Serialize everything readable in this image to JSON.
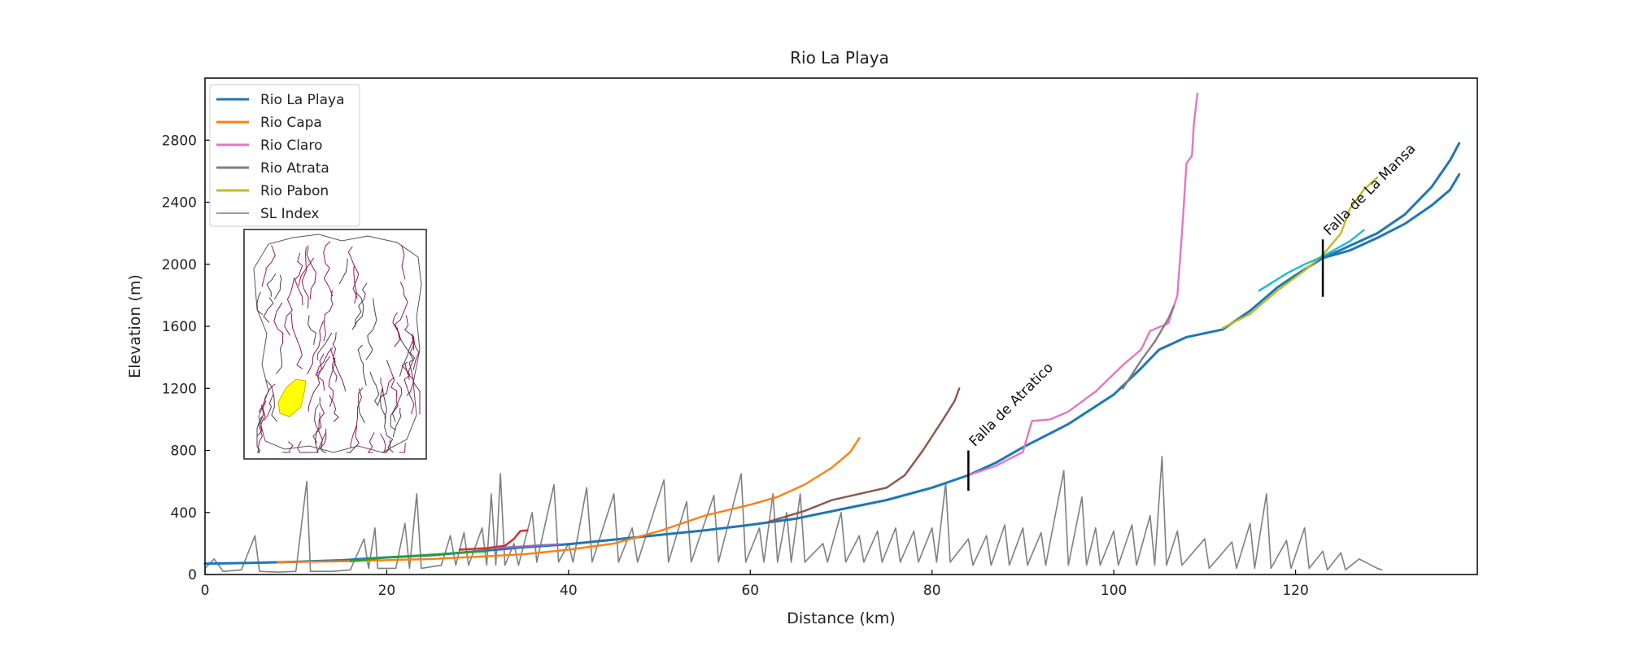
{
  "chart_data": {
    "type": "line",
    "title": "Rio La Playa",
    "xlabel": "Distance (km)",
    "ylabel": "Elevation (m)",
    "xlim": [
      0,
      140
    ],
    "ylim": [
      0,
      3200
    ],
    "xticks": [
      0,
      20,
      40,
      60,
      80,
      100,
      120
    ],
    "yticks": [
      0,
      400,
      800,
      1200,
      1600,
      2000,
      2400,
      2800
    ],
    "grid": false,
    "legend_position": "top-left",
    "series": [
      {
        "name": "Rio La Playa",
        "color": "#1f77b4",
        "in_legend": true,
        "points": [
          [
            0,
            70
          ],
          [
            5,
            75
          ],
          [
            10,
            82
          ],
          [
            15,
            92
          ],
          [
            20,
            110
          ],
          [
            25,
            125
          ],
          [
            30,
            150
          ],
          [
            35,
            175
          ],
          [
            40,
            195
          ],
          [
            45,
            225
          ],
          [
            50,
            255
          ],
          [
            55,
            285
          ],
          [
            60,
            320
          ],
          [
            65,
            360
          ],
          [
            70,
            420
          ],
          [
            75,
            480
          ],
          [
            80,
            560
          ],
          [
            84,
            640
          ],
          [
            87,
            720
          ],
          [
            90,
            820
          ],
          [
            95,
            970
          ],
          [
            100,
            1160
          ],
          [
            103,
            1330
          ],
          [
            105,
            1450
          ],
          [
            108,
            1530
          ],
          [
            112,
            1580
          ],
          [
            115,
            1700
          ],
          [
            118,
            1850
          ],
          [
            120,
            1930
          ],
          [
            123,
            2040
          ],
          [
            126,
            2120
          ],
          [
            129,
            2200
          ],
          [
            132,
            2320
          ],
          [
            135,
            2500
          ],
          [
            137,
            2670
          ],
          [
            138,
            2780
          ]
        ]
      },
      {
        "name": "Rio Capa",
        "color": "#ff7f0e",
        "in_legend": true,
        "points": [
          [
            8,
            80
          ],
          [
            15,
            85
          ],
          [
            25,
            100
          ],
          [
            35,
            130
          ],
          [
            40,
            160
          ],
          [
            45,
            200
          ],
          [
            50,
            280
          ],
          [
            55,
            380
          ],
          [
            60,
            450
          ],
          [
            63,
            500
          ],
          [
            66,
            580
          ],
          [
            69,
            690
          ],
          [
            71,
            790
          ],
          [
            72,
            880
          ]
        ]
      },
      {
        "name": "Rio Claro",
        "color": "#e377c2",
        "in_legend": true,
        "points": [
          [
            84,
            640
          ],
          [
            87,
            700
          ],
          [
            90,
            790
          ],
          [
            91,
            990
          ],
          [
            93,
            1000
          ],
          [
            95,
            1050
          ],
          [
            98,
            1180
          ],
          [
            101,
            1350
          ],
          [
            103,
            1450
          ],
          [
            104,
            1570
          ],
          [
            106,
            1620
          ],
          [
            107,
            1800
          ],
          [
            107.5,
            2200
          ],
          [
            108,
            2650
          ],
          [
            108.6,
            2700
          ],
          [
            108.8,
            2900
          ],
          [
            109.2,
            3100
          ]
        ]
      },
      {
        "name": "Rio Atrata",
        "color": "#7f7f7f",
        "in_legend": true,
        "points": [
          [
            101,
            1200
          ],
          [
            103,
            1380
          ],
          [
            104.5,
            1500
          ],
          [
            106,
            1650
          ],
          [
            106.6,
            1730
          ]
        ]
      },
      {
        "name": "Rio Pabon",
        "color": "#bcbd22",
        "in_legend": true,
        "points": [
          [
            112,
            1590
          ],
          [
            115,
            1680
          ],
          [
            118,
            1830
          ],
          [
            121,
            1960
          ],
          [
            123,
            2060
          ],
          [
            125,
            2200
          ],
          [
            126,
            2360
          ],
          [
            127.5,
            2480
          ],
          [
            129,
            2560
          ]
        ]
      },
      {
        "name": "SL Index",
        "color": "#7f7f7f",
        "in_legend": true,
        "points": [
          [
            0,
            40
          ],
          [
            1,
            100
          ],
          [
            2,
            20
          ],
          [
            4,
            30
          ],
          [
            5.5,
            250
          ],
          [
            6,
            20
          ],
          [
            8,
            15
          ],
          [
            10,
            20
          ],
          [
            11.2,
            600
          ],
          [
            11.6,
            20
          ],
          [
            14,
            20
          ],
          [
            16,
            30
          ],
          [
            17.5,
            230
          ],
          [
            18,
            40
          ],
          [
            18.7,
            300
          ],
          [
            19,
            40
          ],
          [
            21,
            40
          ],
          [
            22,
            330
          ],
          [
            22.5,
            40
          ],
          [
            23.3,
            520
          ],
          [
            23.8,
            40
          ],
          [
            26,
            60
          ],
          [
            27,
            250
          ],
          [
            27.6,
            60
          ],
          [
            28.5,
            270
          ],
          [
            29,
            60
          ],
          [
            30.5,
            300
          ],
          [
            31,
            60
          ],
          [
            31.5,
            520
          ],
          [
            32,
            60
          ],
          [
            32.5,
            650
          ],
          [
            33,
            60
          ],
          [
            34,
            200
          ],
          [
            34.5,
            60
          ],
          [
            36,
            400
          ],
          [
            36.5,
            80
          ],
          [
            38.4,
            580
          ],
          [
            38.9,
            80
          ],
          [
            40,
            200
          ],
          [
            40.5,
            80
          ],
          [
            42,
            560
          ],
          [
            42.6,
            80
          ],
          [
            45,
            520
          ],
          [
            45.5,
            80
          ],
          [
            47,
            300
          ],
          [
            47.6,
            80
          ],
          [
            50.5,
            610
          ],
          [
            51,
            80
          ],
          [
            53,
            470
          ],
          [
            53.5,
            80
          ],
          [
            56,
            510
          ],
          [
            56.5,
            80
          ],
          [
            59,
            650
          ],
          [
            59.5,
            80
          ],
          [
            61,
            300
          ],
          [
            61.5,
            80
          ],
          [
            62.5,
            520
          ],
          [
            63,
            80
          ],
          [
            64,
            400
          ],
          [
            64.5,
            80
          ],
          [
            65.5,
            520
          ],
          [
            66,
            80
          ],
          [
            68,
            200
          ],
          [
            68.5,
            80
          ],
          [
            70,
            400
          ],
          [
            70.5,
            80
          ],
          [
            72,
            250
          ],
          [
            72.5,
            80
          ],
          [
            74,
            280
          ],
          [
            74.5,
            80
          ],
          [
            76,
            300
          ],
          [
            76.5,
            80
          ],
          [
            78,
            280
          ],
          [
            78.5,
            80
          ],
          [
            80,
            300
          ],
          [
            80.5,
            80
          ],
          [
            81.5,
            590
          ],
          [
            82,
            80
          ],
          [
            84,
            230
          ],
          [
            84.5,
            60
          ],
          [
            86,
            250
          ],
          [
            86.5,
            60
          ],
          [
            88,
            320
          ],
          [
            88.5,
            60
          ],
          [
            90,
            300
          ],
          [
            90.5,
            60
          ],
          [
            92,
            270
          ],
          [
            92.5,
            60
          ],
          [
            94.5,
            670
          ],
          [
            95,
            60
          ],
          [
            96.5,
            500
          ],
          [
            97,
            60
          ],
          [
            98,
            300
          ],
          [
            98.5,
            60
          ],
          [
            100,
            280
          ],
          [
            100.5,
            60
          ],
          [
            102,
            320
          ],
          [
            102.5,
            60
          ],
          [
            104,
            380
          ],
          [
            104.5,
            60
          ],
          [
            105.3,
            760
          ],
          [
            105.8,
            60
          ],
          [
            107,
            280
          ],
          [
            107.5,
            60
          ],
          [
            110,
            230
          ],
          [
            110.5,
            40
          ],
          [
            113,
            210
          ],
          [
            113.5,
            40
          ],
          [
            115,
            330
          ],
          [
            115.5,
            40
          ],
          [
            116.8,
            520
          ],
          [
            117.3,
            40
          ],
          [
            119,
            220
          ],
          [
            119.5,
            40
          ],
          [
            121,
            300
          ],
          [
            121.5,
            40
          ],
          [
            123,
            150
          ],
          [
            123.5,
            30
          ],
          [
            125,
            140
          ],
          [
            125.5,
            30
          ],
          [
            127,
            100
          ],
          [
            129,
            40
          ],
          [
            129.5,
            30
          ]
        ]
      },
      {
        "name": "",
        "color": "#2ca02c",
        "in_legend": false,
        "points": [
          [
            16,
            85
          ],
          [
            20,
            110
          ],
          [
            24,
            125
          ],
          [
            28,
            140
          ],
          [
            31,
            150
          ]
        ]
      },
      {
        "name": "",
        "color": "#d62728",
        "in_legend": false,
        "points": [
          [
            28,
            160
          ],
          [
            31,
            170
          ],
          [
            33,
            185
          ],
          [
            34,
            230
          ],
          [
            34.7,
            280
          ],
          [
            35.5,
            285
          ]
        ]
      },
      {
        "name": "",
        "color": "#9467bd",
        "in_legend": false,
        "points": [
          [
            32,
            170
          ],
          [
            36,
            185
          ],
          [
            39,
            195
          ]
        ]
      },
      {
        "name": "",
        "color": "#8c564b",
        "in_legend": false,
        "points": [
          [
            62,
            340
          ],
          [
            66,
            410
          ],
          [
            69,
            480
          ],
          [
            72,
            520
          ],
          [
            75,
            560
          ],
          [
            77,
            640
          ],
          [
            79,
            800
          ],
          [
            81,
            980
          ],
          [
            82.5,
            1120
          ],
          [
            83,
            1200
          ]
        ]
      },
      {
        "name": "",
        "color": "#17becf",
        "in_legend": false,
        "points": [
          [
            116,
            1830
          ],
          [
            119,
            1940
          ],
          [
            121,
            2000
          ],
          [
            123,
            2050
          ],
          [
            126,
            2150
          ],
          [
            127.5,
            2220
          ]
        ]
      },
      {
        "name": "",
        "color": "#1f77b4",
        "in_legend": false,
        "points": [
          [
            123,
            2040
          ],
          [
            126,
            2090
          ],
          [
            129,
            2170
          ],
          [
            132,
            2260
          ],
          [
            135,
            2380
          ],
          [
            137,
            2480
          ],
          [
            138,
            2580
          ]
        ]
      }
    ],
    "annotations": [
      {
        "text": "Falla de Atratico",
        "x": 84,
        "y": 640,
        "bar_ymin": 540,
        "bar_ymax": 800
      },
      {
        "text": "Falla de La Mansa",
        "x": 123,
        "y": 2040,
        "bar_ymin": 1790,
        "bar_ymax": 2160
      }
    ],
    "inset": {
      "type": "map",
      "highlight_color": "#ffff00",
      "line_color": "#8b1a5a"
    }
  }
}
